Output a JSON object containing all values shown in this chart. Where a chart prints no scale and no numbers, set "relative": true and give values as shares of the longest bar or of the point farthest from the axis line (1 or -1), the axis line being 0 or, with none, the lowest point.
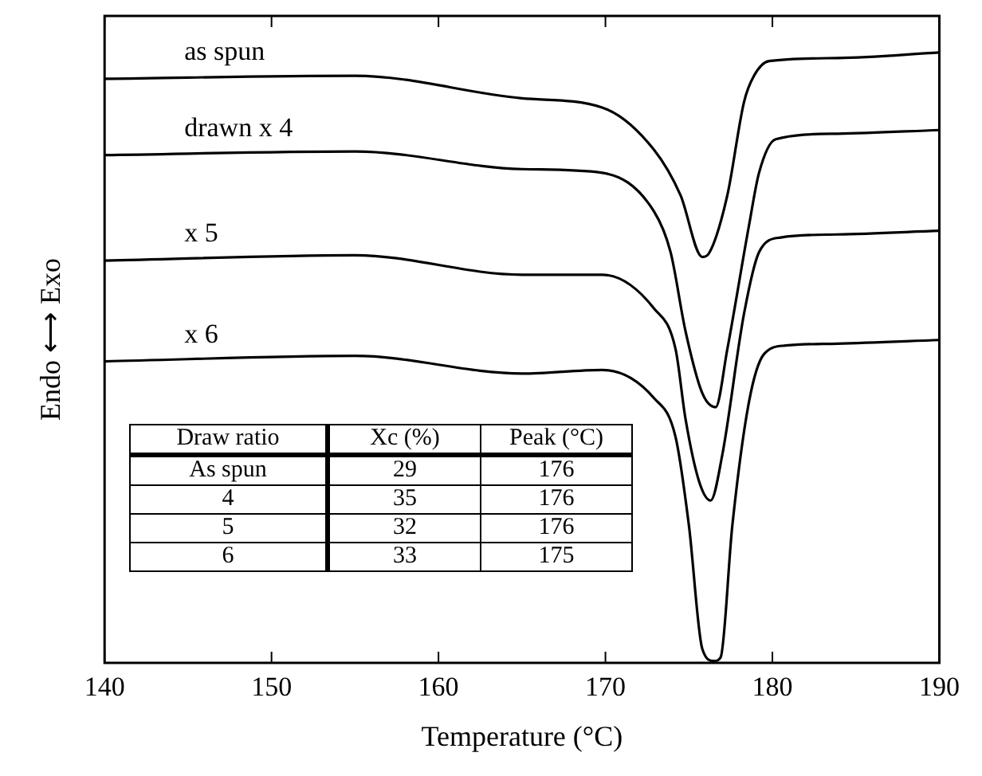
{
  "chart_data": {
    "type": "line",
    "xlabel": "Temperature (°C)",
    "ylabel": "Endo ⟷ Exo",
    "relative": true,
    "xlim": [
      140,
      190
    ],
    "xticks": [
      140,
      150,
      160,
      170,
      180,
      190
    ],
    "grid": false,
    "marker": "none",
    "line_style": "solid",
    "annotations": [
      "Draw ratio",
      "Xc  (%)",
      "Peak (°C)",
      "As spun",
      "29",
      "176",
      "4",
      "35",
      "176",
      "5",
      "32",
      "176",
      "6",
      "33",
      "175"
    ],
    "series": [
      {
        "name": "as spun",
        "color": "#000000",
        "x": [
          140,
          155,
          165,
          169.8,
          172.9,
          174.5,
          175.8,
          176.2,
          177.3,
          178.3,
          178.9,
          179.8,
          183.9,
          190
        ],
        "values": [
          0.957,
          0.962,
          0.925,
          0.91,
          0.841,
          0.766,
          0.665,
          0.671,
          0.766,
          0.919,
          0.962,
          0.986,
          0.991,
          1.0
        ]
      },
      {
        "name": "drawn x 4",
        "color": "#000000",
        "x": [
          140,
          155,
          165,
          169.8,
          172.9,
          173.9,
          174.8,
          175.8,
          176.6,
          177.3,
          178.6,
          179.2,
          180.2,
          183.9,
          190
        ],
        "values": [
          0.832,
          0.838,
          0.809,
          0.803,
          0.74,
          0.673,
          0.543,
          0.442,
          0.419,
          0.514,
          0.717,
          0.803,
          0.858,
          0.867,
          0.873
        ]
      },
      {
        "name": "x 5",
        "color": "#000000",
        "x": [
          140,
          155,
          165,
          169.8,
          172.9,
          174.2,
          174.8,
          175.6,
          176.3,
          177.0,
          178.3,
          179.2,
          180.5,
          183.9,
          190
        ],
        "values": [
          0.659,
          0.668,
          0.636,
          0.636,
          0.581,
          0.514,
          0.399,
          0.298,
          0.266,
          0.341,
          0.572,
          0.673,
          0.697,
          0.702,
          0.708
        ]
      },
      {
        "name": "x 6",
        "color": "#000000",
        "x": [
          140,
          155,
          165,
          169.8,
          172.9,
          174.2,
          175.0,
          175.8,
          176.5,
          176.9,
          177.6,
          178.6,
          179.5,
          180.8,
          183.9,
          190
        ],
        "values": [
          0.494,
          0.503,
          0.474,
          0.48,
          0.434,
          0.37,
          0.225,
          0.023,
          0.003,
          0.009,
          0.225,
          0.428,
          0.506,
          0.52,
          0.523,
          0.529
        ]
      }
    ]
  }
}
